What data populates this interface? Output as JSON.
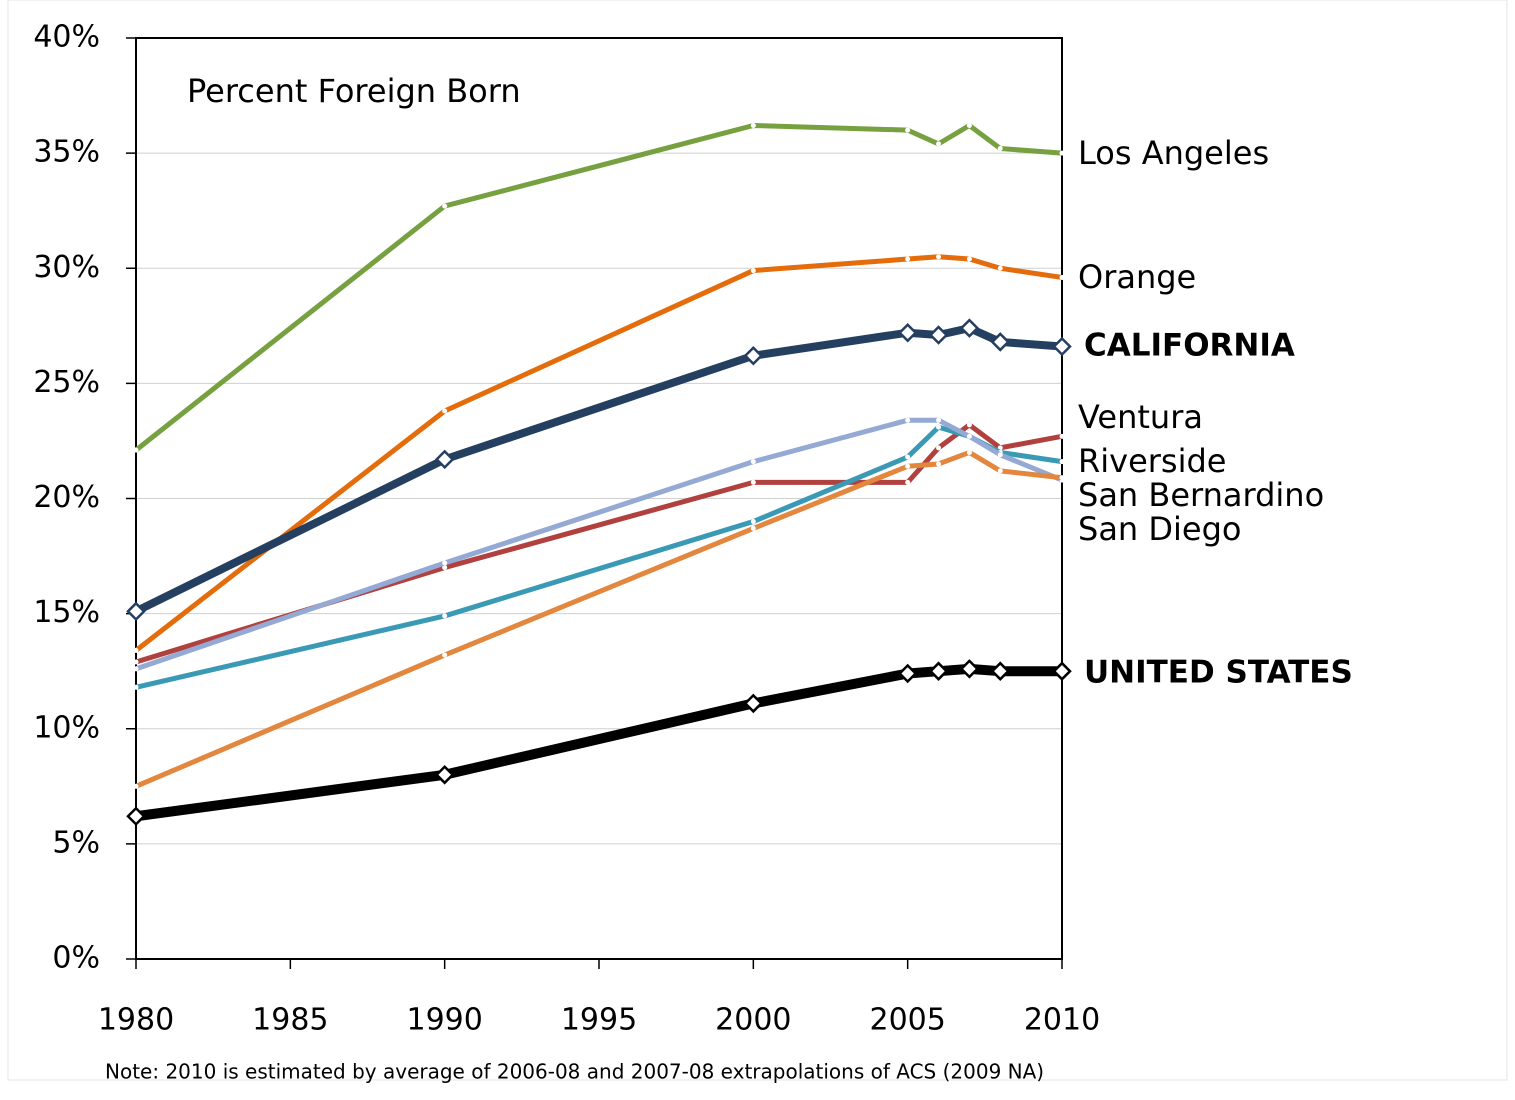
{
  "chart_data": {
    "type": "line",
    "annotation": "Percent Foreign Born",
    "note": "Note: 2010 is estimated by average of 2006-08 and 2007-08 extrapolations of ACS (2009 NA)",
    "x": [
      1980,
      1990,
      2000,
      2005,
      2006,
      2007,
      2008,
      2010
    ],
    "xlim": [
      1980,
      2010
    ],
    "xticks": [
      1980,
      1985,
      1990,
      1995,
      2000,
      2005,
      2010
    ],
    "ylim": [
      0,
      40
    ],
    "yticks": [
      {
        "value": 0,
        "label": "0%"
      },
      {
        "value": 5,
        "label": "5%"
      },
      {
        "value": 10,
        "label": "10%"
      },
      {
        "value": 15,
        "label": "15%"
      },
      {
        "value": 20,
        "label": "20%"
      },
      {
        "value": 25,
        "label": "25%"
      },
      {
        "value": 30,
        "label": "30%"
      },
      {
        "value": 35,
        "label": "35%"
      },
      {
        "value": 40,
        "label": "40%"
      }
    ],
    "grid": true,
    "series": [
      {
        "name": "Los Angeles",
        "color": "#77a140",
        "values": [
          22.1,
          32.7,
          36.2,
          36.0,
          35.4,
          36.2,
          35.2,
          35.0
        ]
      },
      {
        "name": "Orange",
        "color": "#e46c0a",
        "values": [
          13.4,
          23.8,
          29.9,
          30.4,
          30.5,
          30.4,
          30.0,
          29.6
        ]
      },
      {
        "name": "CALIFORNIA",
        "color": "#243f60",
        "values": [
          15.1,
          21.7,
          26.2,
          27.2,
          27.1,
          27.4,
          26.8,
          26.6
        ]
      },
      {
        "name": "Ventura",
        "color": "#b0413e",
        "values": [
          12.9,
          17.0,
          20.7,
          20.7,
          22.2,
          23.2,
          22.2,
          22.7
        ]
      },
      {
        "name": "Riverside",
        "color": "#3a9ab5",
        "values": [
          11.8,
          14.9,
          19.0,
          21.8,
          23.1,
          22.7,
          22.0,
          21.6
        ]
      },
      {
        "name": "San Bernardino",
        "color": "#94a9d4",
        "values": [
          12.6,
          17.2,
          21.6,
          23.4,
          23.4,
          22.7,
          21.9,
          20.8
        ]
      },
      {
        "name": "San Diego",
        "color": "#e3873f",
        "values": [
          7.5,
          13.2,
          18.7,
          21.4,
          21.5,
          22.0,
          21.2,
          20.9
        ]
      },
      {
        "name": "UNITED STATES",
        "color": "#000000",
        "values": [
          6.2,
          8.0,
          11.1,
          12.4,
          12.5,
          12.6,
          12.5,
          12.5
        ]
      }
    ]
  }
}
